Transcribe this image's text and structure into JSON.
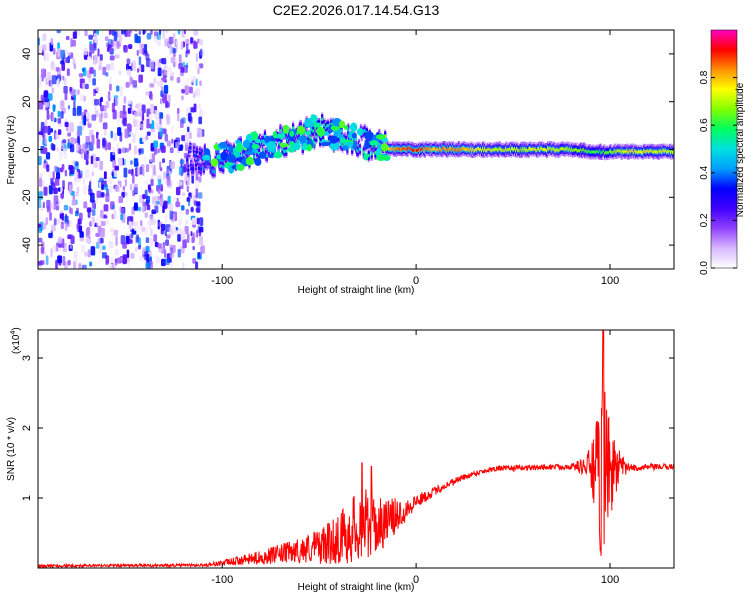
{
  "title": "C2E2.2026.017.14.54.G13",
  "chart_data": [
    {
      "type": "heatmap",
      "xlabel": "Height of straight line (km)",
      "ylabel": "Frequency (Hz)",
      "xlim": [
        -195,
        133
      ],
      "ylim": [
        -50,
        50
      ],
      "x_ticks": [
        -100,
        0,
        100
      ],
      "y_ticks": [
        -40,
        -20,
        0,
        20,
        40
      ],
      "colorbar": {
        "label": "Normalized spectral amplitude",
        "range": [
          0,
          1
        ],
        "ticks": [
          0.0,
          0.2,
          0.4,
          0.6,
          0.8
        ],
        "colors": [
          "#ffffff",
          "#d8b8ff",
          "#9040ff",
          "#4000ff",
          "#0000ff",
          "#00a0ff",
          "#00e0e0",
          "#00ff60",
          "#80ff00",
          "#ffff00",
          "#ff9000",
          "#ff0000",
          "#ff00c0"
        ]
      },
      "noise_region_x": [
        -195,
        -110
      ],
      "ridge": [
        {
          "x": -118,
          "f": -4,
          "a": 0.3
        },
        {
          "x": -110,
          "f": -5,
          "a": 0.35
        },
        {
          "x": -100,
          "f": -4,
          "a": 0.45
        },
        {
          "x": -90,
          "f": -2,
          "a": 0.45
        },
        {
          "x": -80,
          "f": 1,
          "a": 0.5
        },
        {
          "x": -70,
          "f": 3,
          "a": 0.5
        },
        {
          "x": -60,
          "f": 5,
          "a": 0.5
        },
        {
          "x": -50,
          "f": 8,
          "a": 0.55
        },
        {
          "x": -40,
          "f": 6,
          "a": 0.5
        },
        {
          "x": -30,
          "f": 4,
          "a": 0.5
        },
        {
          "x": -20,
          "f": 1,
          "a": 0.6
        },
        {
          "x": -10,
          "f": 0,
          "a": 0.85
        },
        {
          "x": 0,
          "f": 0,
          "a": 0.9
        },
        {
          "x": 10,
          "f": 0,
          "a": 0.8
        },
        {
          "x": 20,
          "f": 0,
          "a": 0.85
        },
        {
          "x": 40,
          "f": 0,
          "a": 0.7
        },
        {
          "x": 60,
          "f": 0,
          "a": 0.72
        },
        {
          "x": 80,
          "f": 0,
          "a": 0.7
        },
        {
          "x": 90,
          "f": -1,
          "a": 0.6
        },
        {
          "x": 95,
          "f": -1,
          "a": 0.6
        },
        {
          "x": 110,
          "f": -1,
          "a": 0.75
        },
        {
          "x": 133,
          "f": -1,
          "a": 0.7
        }
      ]
    },
    {
      "type": "line",
      "xlabel": "Height of straight line (km)",
      "ylabel": "SNR (10 * v/v)",
      "y_multiplier": "(x10",
      "y_multiplier_exp": "4",
      "y_multiplier_close": ")",
      "xlim": [
        -195,
        133
      ],
      "ylim": [
        0,
        3.4
      ],
      "x_ticks": [
        -100,
        0,
        100
      ],
      "y_ticks": [
        1,
        2,
        3
      ],
      "series": [
        {
          "color": "#ff0000",
          "envelope": [
            {
              "x": -195,
              "y": 0.03,
              "spread": 0.02
            },
            {
              "x": -110,
              "y": 0.04,
              "spread": 0.02
            },
            {
              "x": -100,
              "y": 0.07,
              "spread": 0.04
            },
            {
              "x": -80,
              "y": 0.15,
              "spread": 0.1
            },
            {
              "x": -60,
              "y": 0.25,
              "spread": 0.18
            },
            {
              "x": -45,
              "y": 0.35,
              "spread": 0.3
            },
            {
              "x": -35,
              "y": 0.5,
              "spread": 0.45
            },
            {
              "x": -28,
              "y": 0.65,
              "spread": 0.55
            },
            {
              "x": -20,
              "y": 0.6,
              "spread": 0.4
            },
            {
              "x": -10,
              "y": 0.75,
              "spread": 0.25
            },
            {
              "x": 0,
              "y": 0.95,
              "spread": 0.1
            },
            {
              "x": 10,
              "y": 1.1,
              "spread": 0.06
            },
            {
              "x": 20,
              "y": 1.25,
              "spread": 0.05
            },
            {
              "x": 30,
              "y": 1.35,
              "spread": 0.04
            },
            {
              "x": 40,
              "y": 1.42,
              "spread": 0.04
            },
            {
              "x": 80,
              "y": 1.45,
              "spread": 0.04
            },
            {
              "x": 88,
              "y": 1.45,
              "spread": 0.15
            },
            {
              "x": 93,
              "y": 1.4,
              "spread": 0.7
            },
            {
              "x": 96,
              "y": 1.4,
              "spread": 1.6
            },
            {
              "x": 99,
              "y": 1.4,
              "spread": 0.8
            },
            {
              "x": 104,
              "y": 1.42,
              "spread": 0.3
            },
            {
              "x": 110,
              "y": 1.43,
              "spread": 0.05
            },
            {
              "x": 133,
              "y": 1.45,
              "spread": 0.04
            }
          ],
          "peaks": [
            {
              "x": 96.5,
              "y": 3.4
            },
            {
              "x": 95,
              "y": 0.25
            },
            {
              "x": -28,
              "y": 1.5
            },
            {
              "x": -23,
              "y": 1.45
            }
          ]
        }
      ]
    }
  ]
}
